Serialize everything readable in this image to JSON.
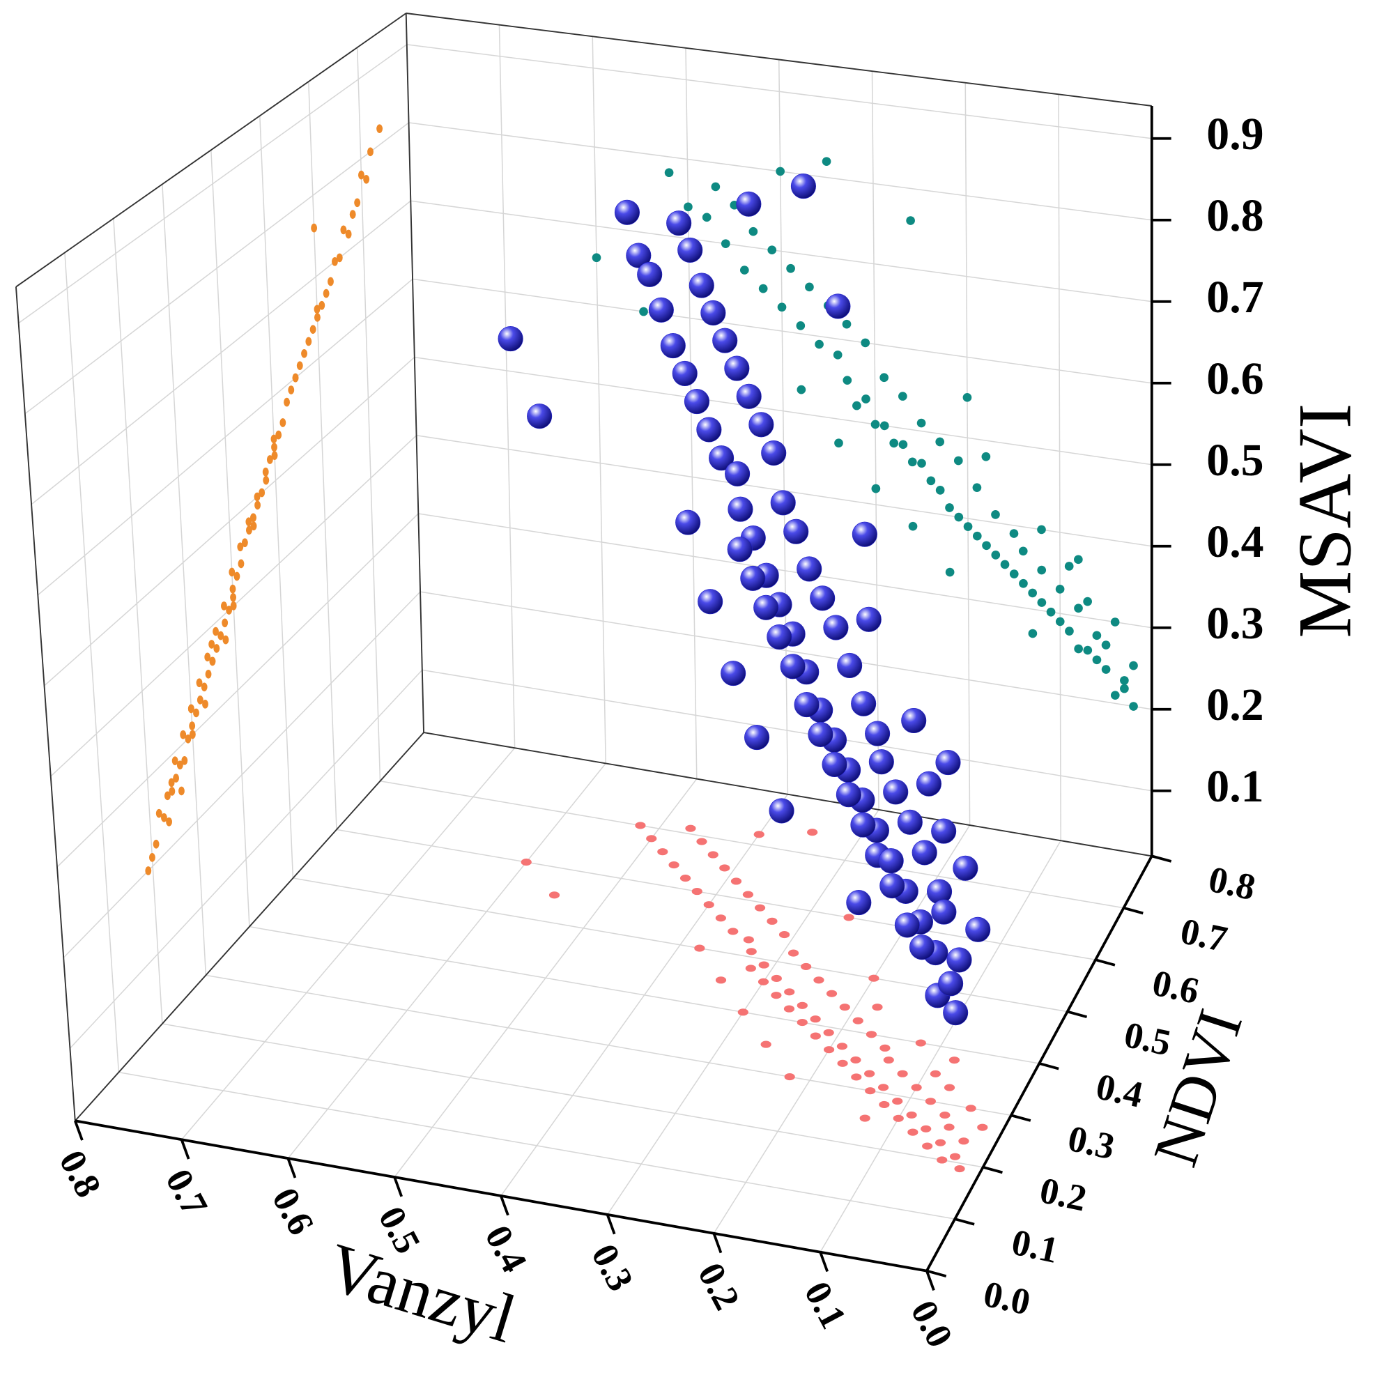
{
  "chart_data": {
    "type": "scatter3d",
    "xlabel": "Vanzyl",
    "ylabel": "NDVI",
    "zlabel": "MSAVI",
    "xlim": [
      0.8,
      0.0
    ],
    "ylim": [
      0.0,
      0.8
    ],
    "zlim": [
      0.02,
      0.94
    ],
    "xticks": [
      0.8,
      0.7,
      0.6,
      0.5,
      0.4,
      0.3,
      0.2,
      0.1,
      {
        "value": 0,
        "label": "0.0"
      }
    ],
    "yticks": [
      {
        "value": 0,
        "label": "0.0"
      },
      0.1,
      0.2,
      0.3,
      0.4,
      0.5,
      0.6,
      0.7,
      0.8
    ],
    "zticks": [
      0.1,
      0.2,
      0.3,
      0.4,
      0.5,
      0.6,
      0.7,
      0.8,
      0.9
    ],
    "grid": true,
    "color": "#2424c8",
    "projection_colors": {
      "yz": "#ee8a2a",
      "xz": "#0e8a82",
      "xy": "#f57373"
    },
    "x": [
      0.02,
      0.03,
      0.04,
      0.05,
      0.03,
      0.06,
      0.07,
      0.05,
      0.08,
      0.09,
      0.1,
      0.06,
      0.11,
      0.08,
      0.12,
      0.13,
      0.1,
      0.14,
      0.15,
      0.12,
      0.16,
      0.17,
      0.14,
      0.18,
      0.19,
      0.15,
      0.2,
      0.21,
      0.17,
      0.22,
      0.23,
      0.19,
      0.24,
      0.25,
      0.21,
      0.26,
      0.27,
      0.23,
      0.28,
      0.29,
      0.25,
      0.3,
      0.31,
      0.27,
      0.32,
      0.33,
      0.29,
      0.34,
      0.31,
      0.36,
      0.33,
      0.38,
      0.35,
      0.4,
      0.37,
      0.42,
      0.39,
      0.44,
      0.41,
      0.46,
      0.43,
      0.48,
      0.45,
      0.5,
      0.47,
      0.52,
      0.4,
      0.35,
      0.26,
      0.2,
      0.18,
      0.12,
      0.09,
      0.07,
      0.04,
      0.22,
      0.26,
      0.3,
      0.34,
      0.38,
      0.55,
      0.6,
      0.08,
      0.13,
      0.02
    ],
    "y": [
      0.19,
      0.21,
      0.2,
      0.23,
      0.24,
      0.22,
      0.25,
      0.26,
      0.24,
      0.27,
      0.26,
      0.28,
      0.29,
      0.3,
      0.28,
      0.31,
      0.32,
      0.3,
      0.33,
      0.34,
      0.32,
      0.35,
      0.36,
      0.34,
      0.37,
      0.38,
      0.36,
      0.39,
      0.4,
      0.38,
      0.41,
      0.42,
      0.4,
      0.43,
      0.44,
      0.42,
      0.45,
      0.46,
      0.44,
      0.47,
      0.48,
      0.46,
      0.49,
      0.5,
      0.48,
      0.51,
      0.52,
      0.53,
      0.55,
      0.54,
      0.57,
      0.56,
      0.59,
      0.58,
      0.61,
      0.6,
      0.63,
      0.62,
      0.65,
      0.64,
      0.67,
      0.66,
      0.69,
      0.68,
      0.71,
      0.7,
      0.72,
      0.74,
      0.6,
      0.5,
      0.45,
      0.4,
      0.35,
      0.33,
      0.3,
      0.3,
      0.35,
      0.4,
      0.45,
      0.5,
      0.55,
      0.6,
      0.38,
      0.25,
      0.27
    ],
    "z": [
      0.2,
      0.22,
      0.21,
      0.24,
      0.23,
      0.25,
      0.26,
      0.27,
      0.26,
      0.28,
      0.29,
      0.28,
      0.3,
      0.31,
      0.31,
      0.32,
      0.33,
      0.33,
      0.34,
      0.35,
      0.35,
      0.36,
      0.37,
      0.37,
      0.38,
      0.39,
      0.39,
      0.4,
      0.41,
      0.41,
      0.43,
      0.44,
      0.44,
      0.46,
      0.47,
      0.46,
      0.48,
      0.49,
      0.48,
      0.5,
      0.51,
      0.5,
      0.53,
      0.54,
      0.52,
      0.55,
      0.56,
      0.58,
      0.6,
      0.59,
      0.62,
      0.61,
      0.64,
      0.63,
      0.66,
      0.65,
      0.68,
      0.67,
      0.7,
      0.7,
      0.72,
      0.73,
      0.75,
      0.74,
      0.77,
      0.78,
      0.8,
      0.82,
      0.76,
      0.55,
      0.48,
      0.4,
      0.36,
      0.32,
      0.3,
      0.33,
      0.38,
      0.42,
      0.47,
      0.53,
      0.6,
      0.66,
      0.37,
      0.27,
      0.25
    ]
  }
}
